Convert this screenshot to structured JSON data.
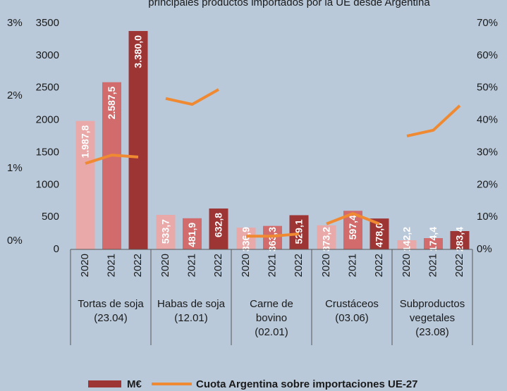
{
  "chart_data": {
    "type": "bar",
    "title": "principales productos importados por la UE desde Argentina",
    "categories": [
      "2020",
      "2021",
      "2022",
      "2020",
      "2021",
      "2022",
      "2020",
      "2021",
      "2022",
      "2020",
      "2021",
      "2022",
      "2020",
      "2021",
      "2022"
    ],
    "groups": [
      {
        "name": [
          "Tortas de soja",
          "(23.04)"
        ]
      },
      {
        "name": [
          "Habas de soja",
          "(12.01)"
        ]
      },
      {
        "name": [
          "Carne de",
          "bovino",
          "(02.01)"
        ]
      },
      {
        "name": [
          "Crustáceos",
          "(03.06)"
        ]
      },
      {
        "name": [
          "Subproductos",
          "vegetales",
          "(23.08)"
        ]
      }
    ],
    "series": [
      {
        "name": "M€",
        "type": "bar",
        "color": "#9e3535",
        "colors": [
          "#e9a9a9",
          "#d26b6b",
          "#9e3535",
          "#e9a9a9",
          "#d26b6b",
          "#9e3535",
          "#e9a9a9",
          "#d26b6b",
          "#9e3535",
          "#e9a9a9",
          "#d26b6b",
          "#9e3535",
          "#e9a9a9",
          "#d26b6b",
          "#9e3535"
        ],
        "values": [
          1987.8,
          2587.5,
          3380.0,
          533.7,
          481.9,
          632.8,
          336.9,
          363.3,
          529.1,
          373.2,
          597.4,
          478.0,
          142.2,
          174.4,
          283.4
        ],
        "value_labels": [
          "1.987,8",
          "2.587,5",
          "3.380,0",
          "533,7",
          "481,9",
          "632,8",
          "336,9",
          "363,3",
          "529,1",
          "373,2",
          "597,4",
          "478,0",
          "142,2",
          "174,4",
          "283,4"
        ]
      },
      {
        "name": "Cuota Argentina sobre importaciones UE-27",
        "type": "line",
        "axis": "y2",
        "color": "#f08a32",
        "values": [
          26.6,
          29.2,
          28.6,
          46.7,
          44.9,
          49.5,
          4.1,
          4.1,
          4.8,
          7.9,
          11.1,
          7.9,
          35.1,
          36.9,
          44.5
        ]
      }
    ],
    "ylim": [
      0,
      3500
    ],
    "yticks": [
      0,
      500,
      1000,
      1500,
      2000,
      2500,
      3000,
      3500
    ],
    "y2lim": [
      0,
      70
    ],
    "y2ticks": [
      {
        "value": 0,
        "label": "0%"
      },
      {
        "value": 10,
        "label": "10%"
      },
      {
        "value": 20,
        "label": "20%"
      },
      {
        "value": 30,
        "label": "30%"
      },
      {
        "value": 40,
        "label": "40%"
      },
      {
        "value": 50,
        "label": "50%"
      },
      {
        "value": 60,
        "label": "60%"
      },
      {
        "value": 70,
        "label": "70%"
      }
    ],
    "y3lim": [
      0,
      3
    ],
    "y3ticks": [
      {
        "value": 0,
        "label": "0%"
      },
      {
        "value": 1,
        "label": "1%"
      },
      {
        "value": 2,
        "label": "2%"
      },
      {
        "value": 3,
        "label": "3%"
      }
    ],
    "grid": false
  }
}
